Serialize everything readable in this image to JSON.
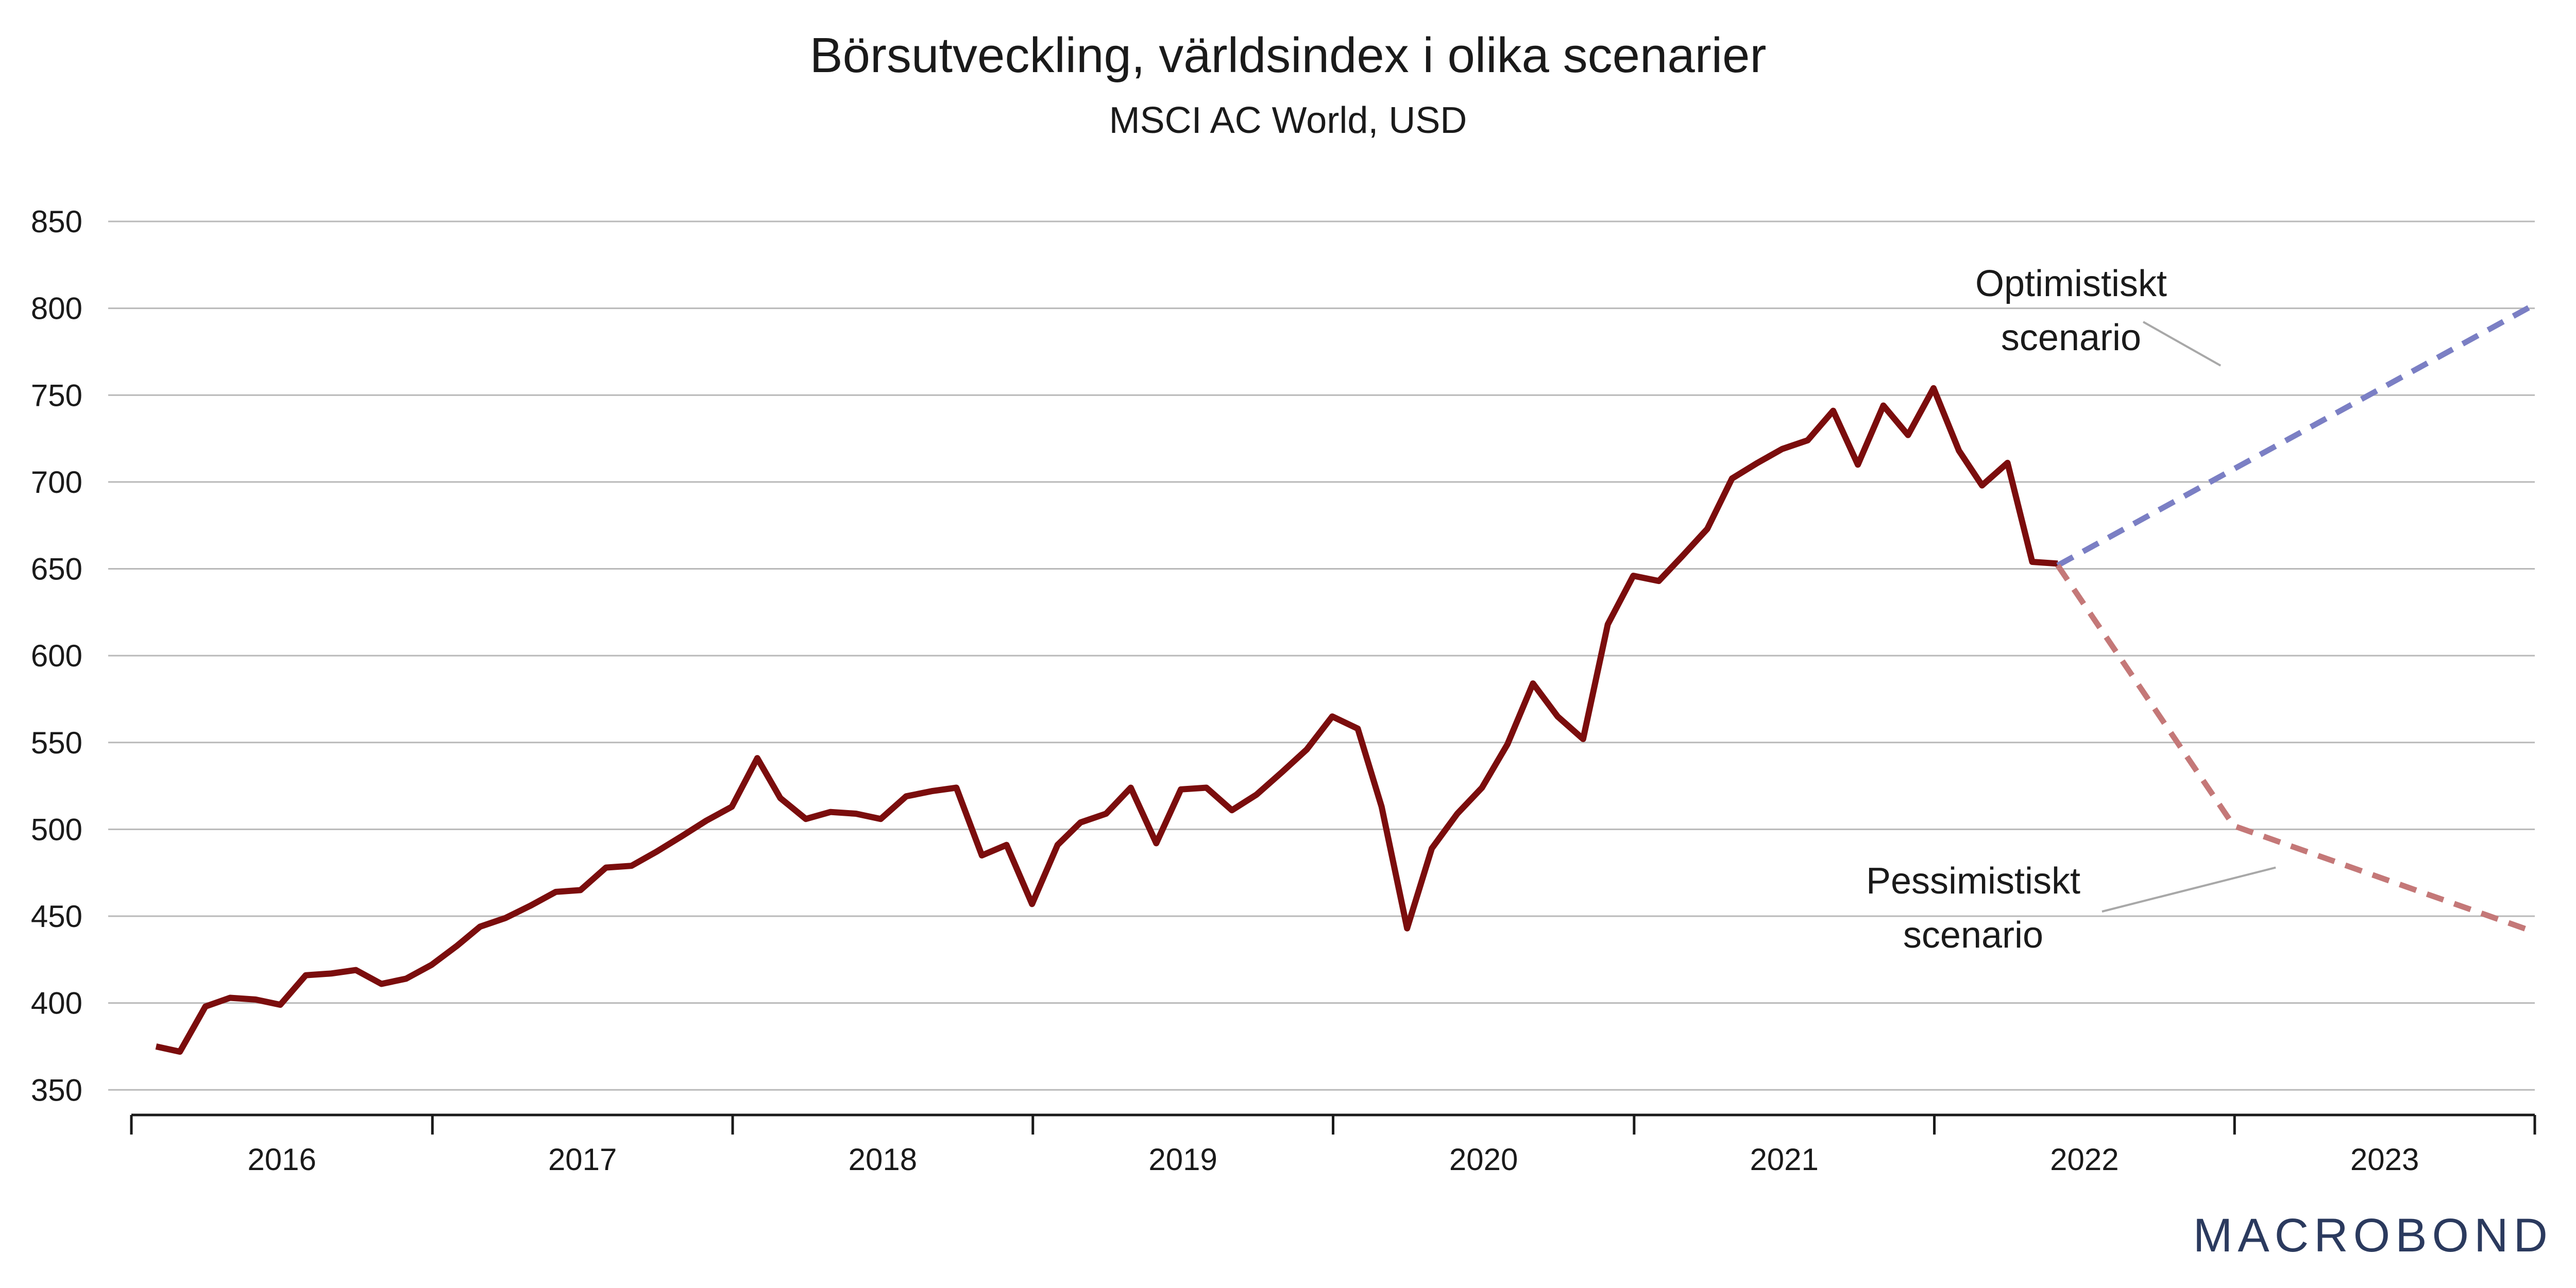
{
  "chart_data": {
    "type": "line",
    "title": "Börsutveckling, världsindex i olika scenarier",
    "subtitle": "MSCI AC World, USD",
    "xlabel": "",
    "ylabel": "",
    "ylim": [
      340,
      850
    ],
    "yticks": [
      "850",
      "800",
      "750",
      "700",
      "650",
      "600",
      "550",
      "500",
      "450",
      "400",
      "350"
    ],
    "xtick_years": [
      "2016",
      "2017",
      "2018",
      "2019",
      "2020",
      "2021",
      "2022",
      "2023"
    ],
    "xlim": [
      "2016-01-01",
      "2024-01-01"
    ],
    "grid": true,
    "series": [
      {
        "key": "actual",
        "color": "#7b0d0d",
        "style": "solid",
        "x": [
          "2016-01-31",
          "2016-02-29",
          "2016-03-31",
          "2016-04-30",
          "2016-05-31",
          "2016-06-30",
          "2016-07-31",
          "2016-08-31",
          "2016-09-30",
          "2016-10-31",
          "2016-11-30",
          "2016-12-31",
          "2017-01-31",
          "2017-02-28",
          "2017-03-31",
          "2017-04-30",
          "2017-05-31",
          "2017-06-30",
          "2017-07-31",
          "2017-08-31",
          "2017-09-30",
          "2017-10-31",
          "2017-11-30",
          "2017-12-31",
          "2018-01-31",
          "2018-02-28",
          "2018-03-31",
          "2018-04-30",
          "2018-05-31",
          "2018-06-30",
          "2018-07-31",
          "2018-08-31",
          "2018-09-30",
          "2018-10-31",
          "2018-11-30",
          "2018-12-31",
          "2019-01-31",
          "2019-02-28",
          "2019-03-31",
          "2019-04-30",
          "2019-05-31",
          "2019-06-30",
          "2019-07-31",
          "2019-08-31",
          "2019-09-30",
          "2019-10-31",
          "2019-11-30",
          "2019-12-31",
          "2020-01-31",
          "2020-02-29",
          "2020-03-31",
          "2020-04-30",
          "2020-05-31",
          "2020-06-30",
          "2020-07-31",
          "2020-08-31",
          "2020-09-30",
          "2020-10-31",
          "2020-11-30",
          "2020-12-31",
          "2021-01-31",
          "2021-02-28",
          "2021-03-31",
          "2021-04-30",
          "2021-05-31",
          "2021-06-30",
          "2021-07-31",
          "2021-08-31",
          "2021-09-30",
          "2021-10-31",
          "2021-11-30",
          "2021-12-31",
          "2022-01-31",
          "2022-02-28",
          "2022-03-31",
          "2022-04-30",
          "2022-05-31"
        ],
        "y": [
          375,
          372,
          398,
          403,
          402,
          399,
          416,
          417,
          419,
          411,
          414,
          422,
          433,
          444,
          449,
          456,
          464,
          465,
          478,
          479,
          487,
          496,
          505,
          513,
          541,
          518,
          506,
          510,
          509,
          506,
          519,
          522,
          524,
          485,
          491,
          457,
          491,
          504,
          509,
          524,
          492,
          523,
          524,
          511,
          520,
          533,
          546,
          565,
          558,
          513,
          443,
          489,
          509,
          524,
          549,
          584,
          565,
          552,
          618,
          646,
          643,
          657,
          673,
          702,
          711,
          719,
          724,
          741,
          710,
          744,
          727,
          754,
          718,
          698,
          711,
          654,
          653
        ]
      },
      {
        "key": "optimistic",
        "color": "#7b7fc4",
        "style": "dashed",
        "x": [
          "2022-05-31",
          "2023-12-31"
        ],
        "y": [
          652,
          802
        ]
      },
      {
        "key": "pessimistic",
        "color": "#c47878",
        "style": "dashed",
        "x": [
          "2022-05-31",
          "2022-12-31",
          "2023-12-31"
        ],
        "y": [
          652,
          502,
          441
        ]
      }
    ],
    "annotations": [
      {
        "line1": "Optimistiskt",
        "line2": "scenario",
        "target_series": "optimistic"
      },
      {
        "line1": "Pessimistiskt",
        "line2": "scenario",
        "target_series": "pessimistic"
      }
    ]
  },
  "logo": {
    "text": "MACROBOND",
    "color": "#2b3a5e"
  }
}
